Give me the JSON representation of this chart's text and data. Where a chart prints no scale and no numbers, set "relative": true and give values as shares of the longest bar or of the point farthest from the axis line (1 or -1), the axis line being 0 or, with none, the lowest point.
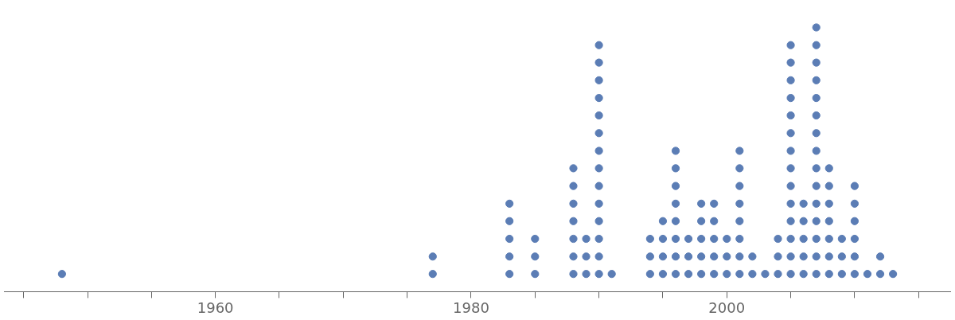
{
  "chart_data": {
    "type": "scatter",
    "marker": "circle",
    "grid": false,
    "tick_labels": "x",
    "relative": true,
    "xlim": [
      1943.5,
      2017.5
    ],
    "xticks": [
      {
        "value": 1945,
        "label": null
      },
      {
        "value": 1950,
        "label": null
      },
      {
        "value": 1955,
        "label": null
      },
      1960,
      {
        "value": 1965,
        "label": null
      },
      {
        "value": 1970,
        "label": null
      },
      {
        "value": 1975,
        "label": null
      },
      1980,
      {
        "value": 1985,
        "label": null
      },
      {
        "value": 1990,
        "label": null
      },
      {
        "value": 1995,
        "label": null
      },
      2000,
      {
        "value": 2005,
        "label": null
      },
      {
        "value": 2010,
        "label": null
      },
      {
        "value": 2015,
        "label": null
      }
    ],
    "series": [
      {
        "color": "#5b7db5",
        "x": [
          1948,
          1977,
          1977,
          1983,
          1983,
          1983,
          1983,
          1983,
          1985,
          1985,
          1985,
          1988,
          1988,
          1988,
          1988,
          1988,
          1988,
          1988,
          1989,
          1989,
          1989,
          1990,
          1990,
          1990,
          1990,
          1990,
          1990,
          1990,
          1990,
          1990,
          1990,
          1990,
          1990,
          1990,
          1990,
          1991,
          1994,
          1994,
          1994,
          1995,
          1995,
          1995,
          1995,
          1996,
          1996,
          1996,
          1996,
          1996,
          1996,
          1996,
          1996,
          1997,
          1997,
          1997,
          1998,
          1998,
          1998,
          1998,
          1998,
          1999,
          1999,
          1999,
          1999,
          1999,
          2000,
          2000,
          2000,
          2001,
          2001,
          2001,
          2001,
          2001,
          2001,
          2001,
          2001,
          2002,
          2002,
          2003,
          2004,
          2004,
          2004,
          2005,
          2005,
          2005,
          2005,
          2005,
          2005,
          2005,
          2005,
          2005,
          2005,
          2005,
          2005,
          2005,
          2005,
          2006,
          2006,
          2006,
          2006,
          2006,
          2007,
          2007,
          2007,
          2007,
          2007,
          2007,
          2007,
          2007,
          2007,
          2007,
          2007,
          2007,
          2007,
          2007,
          2007,
          2008,
          2008,
          2008,
          2008,
          2008,
          2008,
          2008,
          2009,
          2009,
          2009,
          2010,
          2010,
          2010,
          2010,
          2010,
          2010,
          2011,
          2012,
          2012,
          2013
        ],
        "values": [
          0.067,
          0.067,
          0.133,
          0.067,
          0.133,
          0.2,
          0.267,
          0.333,
          0.067,
          0.133,
          0.2,
          0.067,
          0.133,
          0.2,
          0.267,
          0.333,
          0.4,
          0.467,
          0.067,
          0.133,
          0.2,
          0.067,
          0.133,
          0.2,
          0.267,
          0.333,
          0.4,
          0.467,
          0.533,
          0.6,
          0.667,
          0.733,
          0.8,
          0.867,
          0.933,
          0.067,
          0.067,
          0.133,
          0.2,
          0.067,
          0.133,
          0.2,
          0.267,
          0.067,
          0.133,
          0.2,
          0.267,
          0.333,
          0.4,
          0.467,
          0.533,
          0.067,
          0.133,
          0.2,
          0.067,
          0.133,
          0.2,
          0.267,
          0.333,
          0.067,
          0.133,
          0.2,
          0.267,
          0.333,
          0.067,
          0.133,
          0.2,
          0.067,
          0.133,
          0.2,
          0.267,
          0.333,
          0.4,
          0.467,
          0.533,
          0.067,
          0.133,
          0.067,
          0.067,
          0.133,
          0.2,
          0.067,
          0.133,
          0.2,
          0.267,
          0.333,
          0.4,
          0.467,
          0.533,
          0.6,
          0.667,
          0.733,
          0.8,
          0.867,
          0.933,
          0.067,
          0.133,
          0.2,
          0.267,
          0.333,
          0.067,
          0.133,
          0.2,
          0.267,
          0.333,
          0.4,
          0.467,
          0.533,
          0.6,
          0.667,
          0.733,
          0.8,
          0.867,
          0.933,
          1,
          0.067,
          0.133,
          0.2,
          0.267,
          0.333,
          0.4,
          0.467,
          0.067,
          0.133,
          0.2,
          0.067,
          0.133,
          0.2,
          0.267,
          0.333,
          0.4,
          0.067,
          0.067,
          0.133,
          0.067
        ]
      }
    ]
  }
}
